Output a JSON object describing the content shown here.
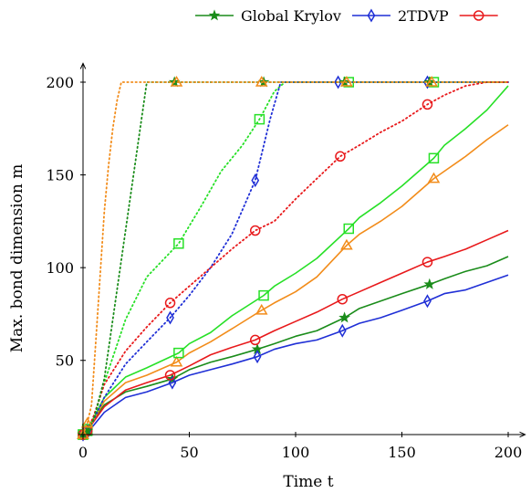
{
  "chart_data": {
    "type": "line",
    "xlabel": "Time t",
    "ylabel": "Max. bond dimension m",
    "xlim": [
      0,
      200
    ],
    "ylim": [
      10,
      200
    ],
    "xticks": [
      0,
      50,
      100,
      150,
      200
    ],
    "yticks": [
      50,
      100,
      150,
      200
    ],
    "grid": false,
    "legend_position": "top",
    "legend": [
      {
        "name": "Global Krylov",
        "color": "#1a8c1a",
        "marker": "star"
      },
      {
        "name": "2TDVP",
        "color": "#1f2fd6",
        "marker": "diamond"
      },
      {
        "name": "",
        "color": "#e8191b",
        "marker": "circle"
      }
    ],
    "series": [
      {
        "name": "Global Krylov",
        "color": "#1a8c1a",
        "style": "solid",
        "marker": "star",
        "x": [
          0,
          2,
          5,
          10,
          20,
          30,
          42,
          50,
          60,
          70,
          82,
          90,
          100,
          110,
          123,
          130,
          140,
          150,
          163,
          170,
          180,
          190,
          200
        ],
        "y": [
          10,
          12,
          18,
          26,
          33,
          36,
          40,
          45,
          49,
          52,
          56,
          59,
          63,
          66,
          73,
          78,
          82,
          86,
          91,
          94,
          98,
          101,
          106
        ]
      },
      {
        "name": "2TDVP",
        "color": "#1f2fd6",
        "style": "solid",
        "marker": "diamond",
        "x": [
          0,
          2,
          5,
          10,
          20,
          30,
          42,
          50,
          60,
          70,
          82,
          90,
          100,
          110,
          122,
          130,
          140,
          150,
          162,
          170,
          180,
          190,
          200
        ],
        "y": [
          10,
          11,
          15,
          22,
          30,
          33,
          38,
          42,
          45,
          48,
          52,
          56,
          59,
          61,
          66,
          70,
          73,
          77,
          82,
          86,
          88,
          92,
          96
        ]
      },
      {
        "name": "",
        "color": "#e8191b",
        "style": "solid",
        "marker": "circle",
        "x": [
          0,
          2,
          5,
          10,
          20,
          30,
          41,
          50,
          60,
          70,
          81,
          90,
          100,
          110,
          122,
          130,
          140,
          150,
          162,
          170,
          180,
          190,
          200
        ],
        "y": [
          10,
          12,
          17,
          25,
          34,
          38,
          42,
          47,
          53,
          57,
          61,
          66,
          71,
          76,
          83,
          87,
          92,
          97,
          103,
          106,
          110,
          115,
          120
        ]
      },
      {
        "name": "",
        "color": "#f28c1a",
        "style": "solid",
        "marker": "triangle",
        "x": [
          0,
          2,
          5,
          10,
          20,
          30,
          44,
          50,
          60,
          70,
          84,
          90,
          100,
          110,
          124,
          130,
          140,
          150,
          165,
          170,
          180,
          190,
          200
        ],
        "y": [
          10,
          12,
          18,
          28,
          38,
          42,
          49,
          54,
          60,
          67,
          77,
          81,
          87,
          95,
          112,
          118,
          125,
          133,
          148,
          152,
          160,
          169,
          177
        ]
      },
      {
        "name": "",
        "color": "#27e027",
        "style": "solid",
        "marker": "square",
        "x": [
          0,
          2,
          5,
          10,
          20,
          30,
          45,
          50,
          60,
          70,
          85,
          90,
          100,
          110,
          125,
          130,
          140,
          150,
          165,
          170,
          180,
          190,
          200
        ],
        "y": [
          10,
          13,
          19,
          30,
          41,
          46,
          54,
          59,
          65,
          74,
          85,
          90,
          97,
          105,
          121,
          127,
          135,
          144,
          159,
          166,
          175,
          185,
          198
        ]
      },
      {
        "name": "",
        "color": "#27e027",
        "style": "dotted",
        "marker": "square",
        "x": [
          0,
          2,
          5,
          10,
          20,
          30,
          45,
          55,
          65,
          75,
          83,
          90,
          95,
          100,
          125,
          165,
          200
        ],
        "y": [
          10,
          12,
          18,
          38,
          72,
          95,
          113,
          132,
          152,
          166,
          180,
          195,
          200,
          200,
          200,
          200,
          200
        ]
      },
      {
        "name": "",
        "color": "#1f2fd6",
        "style": "dotted",
        "marker": "diamond",
        "x": [
          0,
          2,
          5,
          10,
          20,
          30,
          41,
          50,
          60,
          70,
          81,
          88,
          93,
          100,
          120,
          162,
          200
        ],
        "y": [
          10,
          12,
          18,
          30,
          48,
          60,
          73,
          85,
          100,
          118,
          147,
          180,
          200,
          200,
          200,
          200,
          200
        ]
      },
      {
        "name": "",
        "color": "#e8191b",
        "style": "dotted",
        "marker": "circle",
        "x": [
          0,
          2,
          5,
          10,
          20,
          30,
          41,
          50,
          60,
          70,
          81,
          90,
          100,
          110,
          121,
          130,
          140,
          150,
          162,
          170,
          180,
          190,
          200
        ],
        "y": [
          10,
          12,
          20,
          37,
          55,
          68,
          81,
          90,
          100,
          110,
          120,
          125,
          137,
          148,
          160,
          166,
          173,
          179,
          188,
          193,
          198,
          200,
          200
        ]
      },
      {
        "name": "",
        "color": "#1a8c1a",
        "style": "dotted",
        "marker": "star",
        "x": [
          0,
          2,
          5,
          10,
          15,
          20,
          25,
          30,
          43,
          85,
          123,
          163,
          200
        ],
        "y": [
          10,
          12,
          18,
          40,
          80,
          120,
          160,
          200,
          200,
          200,
          200,
          200,
          200
        ]
      },
      {
        "name": "",
        "color": "#f28c1a",
        "style": "dotted",
        "marker": "triangle",
        "x": [
          0,
          2,
          4,
          6,
          8,
          10,
          12,
          14,
          16,
          18,
          44,
          84,
          124,
          164,
          200
        ],
        "y": [
          10,
          16,
          26,
          60,
          95,
          130,
          155,
          175,
          190,
          200,
          200,
          200,
          200,
          200,
          200
        ]
      }
    ]
  }
}
